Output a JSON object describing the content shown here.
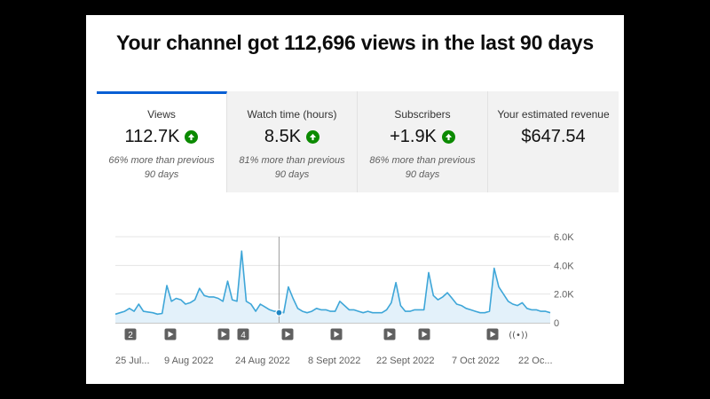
{
  "headline": "Your channel got 112,696 views in the last 90 days",
  "tabs": [
    {
      "label": "Views",
      "value": "112.7K",
      "trend": "up",
      "note": "66% more than previous 90 days",
      "active": true
    },
    {
      "label": "Watch time (hours)",
      "value": "8.5K",
      "trend": "up",
      "note": "81% more than previous 90 days",
      "active": false
    },
    {
      "label": "Subscribers",
      "value": "+1.9K",
      "trend": "up",
      "note": "86% more than previous 90 days",
      "active": false
    },
    {
      "label": "Your estimated revenue",
      "value": "$647.54",
      "trend": "none",
      "note": "",
      "active": false
    }
  ],
  "colors": {
    "line": "#3ea6d8",
    "fill": "#e3f1fa",
    "accent": "#065fd4",
    "up": "#0b8a00"
  },
  "chart_data": {
    "type": "area",
    "x_start": "2022-07-25",
    "x_end": "2022-10-22",
    "x_tick_labels": [
      "25 Jul...",
      "9 Aug 2022",
      "24 Aug 2022",
      "8 Sept 2022",
      "22 Sept 2022",
      "7 Oct 2022",
      "22 Oc..."
    ],
    "y_tick_labels": [
      "6.0K",
      "4.0K",
      "2.0K",
      "0"
    ],
    "ylim": [
      0,
      6000
    ],
    "grid": true,
    "series": [
      {
        "name": "",
        "values": [
          600,
          700,
          800,
          1000,
          800,
          1300,
          800,
          750,
          700,
          600,
          650,
          2600,
          1500,
          1700,
          1600,
          1300,
          1400,
          1600,
          2400,
          1900,
          1800,
          1800,
          1700,
          1500,
          2900,
          1600,
          1500,
          5000,
          1500,
          1300,
          800,
          1300,
          1100,
          900,
          800,
          800,
          700,
          2500,
          1700,
          1000,
          800,
          700,
          800,
          1000,
          900,
          900,
          800,
          800,
          1500,
          1200,
          900,
          900,
          800,
          700,
          800,
          700,
          700,
          700,
          900,
          1400,
          2800,
          1200,
          800,
          800,
          900,
          900,
          900,
          3500,
          1900,
          1600,
          1800,
          2100,
          1700,
          1300,
          1200,
          1000,
          900,
          800,
          700,
          700,
          800,
          3800,
          2500,
          2000,
          1500,
          1300,
          1200,
          1400,
          1000,
          900,
          900,
          800,
          800,
          700
        ]
      }
    ],
    "highlight": {
      "date": "2022-08-29",
      "value": 700
    },
    "video_markers": [
      {
        "type": "count",
        "label": "2"
      },
      {
        "type": "play"
      },
      {
        "type": "play"
      },
      {
        "type": "count",
        "label": "4"
      },
      {
        "type": "play"
      },
      {
        "type": "play"
      },
      {
        "type": "play"
      },
      {
        "type": "play"
      },
      {
        "type": "play"
      },
      {
        "type": "live"
      }
    ]
  }
}
